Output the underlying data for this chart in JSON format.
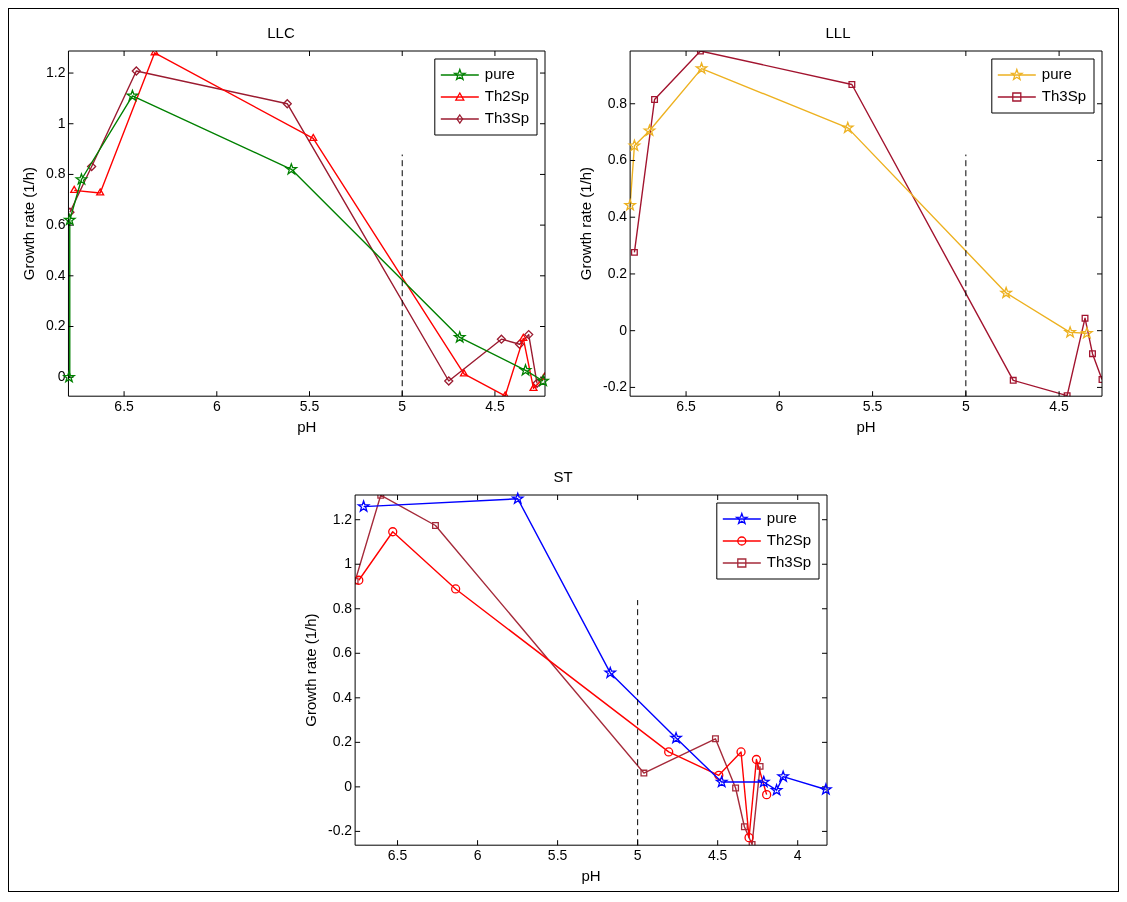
{
  "chart_data": [
    {
      "type": "line",
      "title": "LLC",
      "xlabel": "pH",
      "ylabel": "Growth rate (1/h)",
      "xlim": [
        6.8,
        4.23
      ],
      "ylim": [
        -0.075,
        1.287
      ],
      "xticks": [
        6.5,
        6,
        5.5,
        5,
        4.5
      ],
      "yticks": [
        0,
        0.2,
        0.4,
        0.6,
        0.8,
        1,
        1.2
      ],
      "grid": false,
      "legend": "top right",
      "ref_lines": [
        {
          "axis": "x",
          "value": 5,
          "line_style": "dashed",
          "color": "#000000"
        }
      ],
      "series": [
        {
          "name": "pure",
          "color": "#008000",
          "marker": "star",
          "x": [
            6.797,
            6.793,
            6.73,
            6.455,
            5.598,
            4.69,
            4.335,
            4.24
          ],
          "values": [
            0,
            0.62,
            0.78,
            1.11,
            0.82,
            0.157,
            0.027,
            -0.015
          ]
        },
        {
          "name": "Th2Sp",
          "color": "#ff0000",
          "marker": "triangle",
          "x": [
            6.769,
            6.629,
            6.335,
            5.48,
            4.667,
            4.445,
            4.347,
            4.292,
            4.233
          ],
          "values": [
            0.737,
            0.727,
            1.28,
            0.942,
            0.013,
            -0.074,
            0.153,
            -0.044,
            0
          ]
        },
        {
          "name": "Th3Sp",
          "color": "#9b1b30",
          "marker": "diamond",
          "x": [
            6.792,
            6.675,
            6.434,
            5.62,
            4.749,
            4.465,
            4.367,
            4.318,
            4.273
          ],
          "values": [
            0.651,
            0.831,
            1.208,
            1.079,
            -0.015,
            0.15,
            0.13,
            0.168,
            -0.024
          ]
        }
      ]
    },
    {
      "type": "line",
      "title": "LLL",
      "xlabel": "pH",
      "ylabel": "Growth rate (1/h)",
      "xlim": [
        6.8,
        4.27
      ],
      "ylim": [
        -0.231,
        0.986
      ],
      "xticks": [
        6.5,
        6,
        5.5,
        5,
        4.5
      ],
      "yticks": [
        -0.2,
        0,
        0.2,
        0.4,
        0.6,
        0.8
      ],
      "grid": false,
      "legend": "top right",
      "ref_lines": [
        {
          "axis": "x",
          "value": 5,
          "line_style": "dashed",
          "color": "#000000"
        }
      ],
      "series": [
        {
          "name": "pure",
          "color": "#edb120",
          "marker": "star",
          "x": [
            6.8,
            6.777,
            6.696,
            6.417,
            5.633,
            4.784,
            4.441,
            4.351
          ],
          "values": [
            0.442,
            0.652,
            0.705,
            0.924,
            0.715,
            0.133,
            -0.006,
            -0.009
          ]
        },
        {
          "name": "Th3Sp",
          "color": "#a2142f",
          "marker": "square",
          "x": [
            6.777,
            6.669,
            6.423,
            5.611,
            4.746,
            4.457,
            4.361,
            4.321,
            4.27
          ],
          "values": [
            0.276,
            0.815,
            0.986,
            0.868,
            -0.175,
            -0.229,
            0.044,
            -0.081,
            -0.172
          ]
        }
      ]
    },
    {
      "type": "line",
      "title": "ST",
      "xlabel": "pH",
      "ylabel": "Growth rate (1/h)",
      "xlim": [
        6.765,
        3.817
      ],
      "ylim": [
        -0.262,
        1.311
      ],
      "xticks": [
        6.5,
        6,
        5.5,
        5,
        4.5,
        4
      ],
      "yticks": [
        -0.2,
        0,
        0.2,
        0.4,
        0.6,
        0.8,
        1,
        1.2
      ],
      "grid": false,
      "legend": "top right",
      "ref_lines": [
        {
          "axis": "x",
          "value": 5,
          "line_style": "dashed",
          "color": "#000000"
        }
      ],
      "series": [
        {
          "name": "pure",
          "color": "#0000ff",
          "marker": "star",
          "x": [
            6.712,
            5.749,
            5.171,
            4.76,
            4.475,
            4.212,
            4.132,
            4.091,
            3.824
          ],
          "values": [
            1.259,
            1.294,
            0.512,
            0.219,
            0.022,
            0.022,
            -0.015,
            0.046,
            -0.012
          ]
        },
        {
          "name": "Th2Sp",
          "color": "#ff0000",
          "marker": "circle",
          "x": [
            6.742,
            6.53,
            6.137,
            4.806,
            4.493,
            4.354,
            4.304,
            4.258,
            4.194
          ],
          "values": [
            0.928,
            1.146,
            0.889,
            0.157,
            0.052,
            0.157,
            -0.228,
            0.123,
            -0.035
          ]
        },
        {
          "name": "Th3Sp",
          "color": "#a52a3a",
          "marker": "square",
          "x": [
            6.765,
            6.605,
            6.263,
            4.961,
            4.514,
            4.388,
            4.333,
            4.285,
            4.235
          ],
          "values": [
            0.925,
            1.31,
            1.174,
            0.062,
            0.216,
            -0.005,
            -0.179,
            -0.259,
            0.092
          ]
        }
      ]
    }
  ]
}
